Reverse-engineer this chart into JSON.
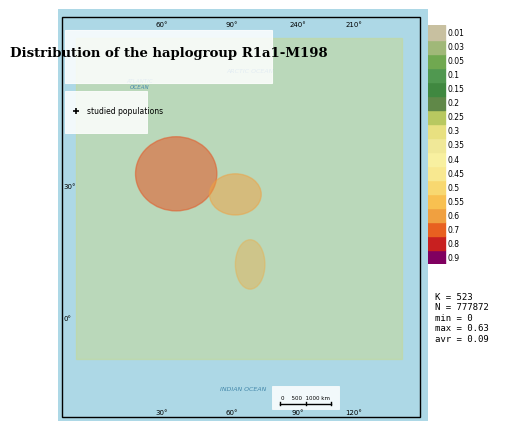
{
  "title": "Distribution of the haplogroup R1a1-M198",
  "legend_label": "studied populations",
  "colorbar_values": [
    0.01,
    0.03,
    0.05,
    0.1,
    0.15,
    0.2,
    0.25,
    0.3,
    0.35,
    0.4,
    0.45,
    0.5,
    0.55,
    0.6,
    0.7,
    0.8,
    0.9
  ],
  "colorbar_colors": [
    "#c8c0a0",
    "#a0b878",
    "#70a850",
    "#509850",
    "#408840",
    "#608848",
    "#b8c860",
    "#e8e080",
    "#f0e898",
    "#f8f0a0",
    "#f8e890",
    "#f8d870",
    "#f8c050",
    "#f0a040",
    "#e86020",
    "#c82020",
    "#800060"
  ],
  "stats_text": "K = 523\nN = 777872\nmin = 0\nmax = 0.63\navr = 0.09",
  "scale_text": "0    500  1000 km",
  "bg_color": "#c8e8f8",
  "map_bg": "#add8e6",
  "title_fontsize": 10,
  "annotation_fontsize": 6
}
